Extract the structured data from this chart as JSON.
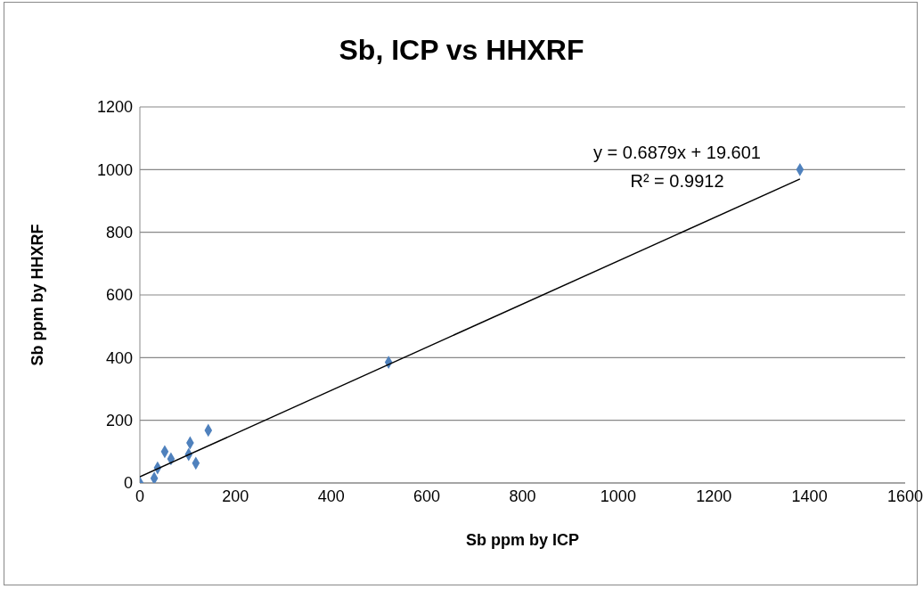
{
  "chart_data": {
    "type": "scatter",
    "title": "Sb, ICP vs HHXRF",
    "xlabel": "Sb ppm by ICP",
    "ylabel": "Sb ppm by HHXRF",
    "xlim": [
      0,
      1600
    ],
    "xticks": [
      0,
      200,
      400,
      600,
      800,
      1000,
      1200,
      1400,
      1600
    ],
    "ylim": [
      0,
      1200
    ],
    "yticks": [
      0,
      200,
      400,
      600,
      800,
      1000,
      1200
    ],
    "grid": "y",
    "legend": false,
    "series": [
      {
        "marker": "diamond",
        "color": "#4f81bd",
        "x": [
          0,
          30,
          37,
          52,
          65,
          102,
          105,
          117,
          143,
          520,
          1380
        ],
        "values": [
          0,
          15,
          48,
          100,
          77,
          91,
          128,
          63,
          168,
          385,
          1000
        ]
      },
      {
        "type": "line",
        "marker": "none",
        "color": "#000000",
        "x": [
          0,
          1380
        ],
        "values": [
          20,
          970
        ]
      }
    ],
    "annotations": [
      "y = 0.6879x + 19.601",
      "R² = 0.9912"
    ]
  }
}
